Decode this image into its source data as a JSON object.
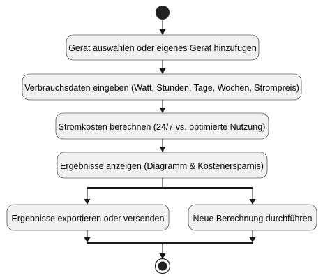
{
  "steps": [
    {
      "label": "Gerät auswählen oder eigenes Gerät hinzufügen"
    },
    {
      "label": "Verbrauchsdaten eingeben (Watt, Stunden, Tage, Wochen, Strompreis)"
    },
    {
      "label": "Stromkosten berechnen (24/7 vs. optimierte Nutzung)"
    },
    {
      "label": "Ergebnisse anzeigen (Diagramm & Kostenersparnis)"
    }
  ],
  "branches": [
    {
      "label": "Ergebnisse exportieren oder versenden"
    },
    {
      "label": "Neue Berechnung durchführen"
    }
  ]
}
